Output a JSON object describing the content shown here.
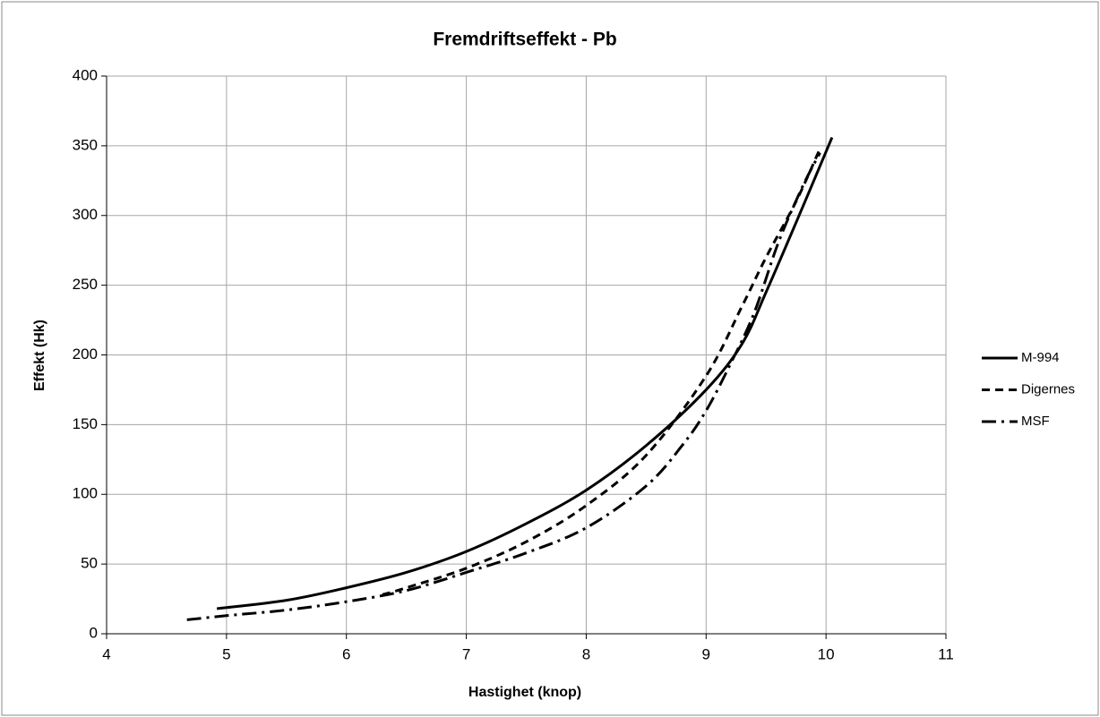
{
  "chart_data": {
    "type": "line",
    "title": "Fremdriftseffekt - Pb",
    "x_label": "Hastighet (knop)",
    "y_label": "Effekt  (Hk)",
    "xlim": [
      4,
      11
    ],
    "xticks": [
      4,
      5,
      6,
      7,
      8,
      9,
      10,
      11
    ],
    "ylim": [
      0,
      400
    ],
    "yticks": [
      0,
      50,
      100,
      150,
      200,
      250,
      300,
      350,
      400
    ],
    "grid": true,
    "legend": "right",
    "series": [
      {
        "name": "M-994",
        "color": "#000000",
        "style": "solid",
        "x": [
          4.92,
          5.5,
          6,
          6.5,
          7,
          7.5,
          8,
          8.5,
          9,
          9.3,
          9.5,
          9.8,
          10.05
        ],
        "values": [
          18,
          24,
          33,
          44,
          59,
          79,
          103,
          135,
          175,
          208,
          245,
          305,
          356
        ]
      },
      {
        "name": "Digernes",
        "color": "#000000",
        "style": "dashed",
        "x": [
          6.3,
          6.5,
          7,
          7.5,
          8,
          8.5,
          9,
          9.3,
          9.5,
          9.75,
          9.95
        ],
        "values": [
          28,
          33,
          47,
          66,
          92,
          128,
          185,
          235,
          270,
          310,
          348
        ]
      },
      {
        "name": "MSF",
        "color": "#000000",
        "style": "dashdot",
        "x": [
          4.67,
          5,
          5.5,
          6,
          6.5,
          7,
          7.5,
          8,
          8.5,
          8.8,
          9,
          9.2,
          9.4,
          9.6,
          9.8,
          9.95
        ],
        "values": [
          10,
          13,
          17,
          23,
          31,
          44,
          58,
          76,
          106,
          135,
          160,
          193,
          230,
          280,
          320,
          345
        ]
      }
    ]
  }
}
